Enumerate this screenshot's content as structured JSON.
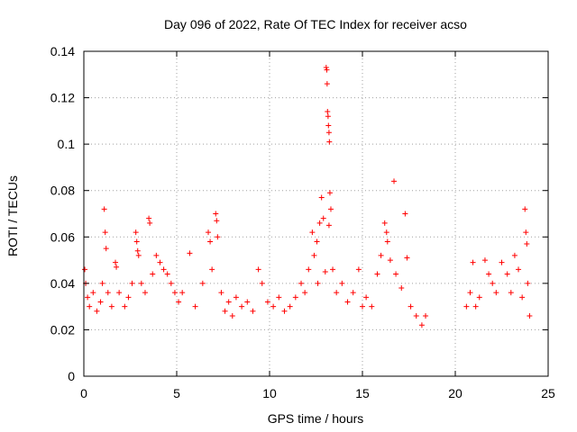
{
  "chart_data": {
    "type": "scatter",
    "title": "Day 096 of 2022, Rate Of TEC Index for receiver acso",
    "xlabel": "GPS time / hours",
    "ylabel": "ROTI / TECUs",
    "xlim": [
      0,
      25
    ],
    "ylim": [
      0,
      0.14
    ],
    "xticks": [
      0,
      5,
      10,
      15,
      20,
      25
    ],
    "yticks": [
      0,
      0.02,
      0.04,
      0.06,
      0.08,
      0.1,
      0.12,
      0.14
    ],
    "xtick_labels": [
      "0",
      "5",
      "10",
      "15",
      "20",
      "25"
    ],
    "ytick_labels": [
      "0",
      "0.02",
      "0.04",
      "0.06",
      "0.08",
      "0.1",
      "0.12",
      "0.14"
    ],
    "grid": true,
    "marker": "+",
    "marker_color": "#ff0000",
    "gaps": [
      [
        18.5,
        20.5
      ]
    ],
    "series": [
      {
        "points": [
          [
            0.05,
            0.046
          ],
          [
            0.1,
            0.04
          ],
          [
            0.2,
            0.034
          ],
          [
            0.3,
            0.03
          ],
          [
            0.5,
            0.036
          ],
          [
            0.7,
            0.028
          ],
          [
            0.9,
            0.032
          ],
          [
            1.1,
            0.072
          ],
          [
            1.15,
            0.062
          ],
          [
            1.2,
            0.055
          ],
          [
            1.0,
            0.04
          ],
          [
            1.3,
            0.036
          ],
          [
            1.5,
            0.03
          ],
          [
            1.7,
            0.049
          ],
          [
            1.75,
            0.047
          ],
          [
            1.9,
            0.036
          ],
          [
            2.2,
            0.03
          ],
          [
            2.4,
            0.034
          ],
          [
            2.6,
            0.04
          ],
          [
            2.8,
            0.062
          ],
          [
            2.85,
            0.058
          ],
          [
            2.9,
            0.054
          ],
          [
            2.95,
            0.052
          ],
          [
            3.1,
            0.04
          ],
          [
            3.3,
            0.036
          ],
          [
            3.5,
            0.068
          ],
          [
            3.55,
            0.066
          ],
          [
            3.7,
            0.044
          ],
          [
            3.9,
            0.052
          ],
          [
            4.1,
            0.049
          ],
          [
            4.3,
            0.046
          ],
          [
            4.5,
            0.044
          ],
          [
            4.7,
            0.04
          ],
          [
            4.9,
            0.036
          ],
          [
            5.1,
            0.032
          ],
          [
            5.3,
            0.036
          ],
          [
            5.7,
            0.053
          ],
          [
            6.0,
            0.03
          ],
          [
            6.4,
            0.04
          ],
          [
            6.7,
            0.062
          ],
          [
            6.8,
            0.058
          ],
          [
            6.9,
            0.046
          ],
          [
            7.1,
            0.07
          ],
          [
            7.15,
            0.067
          ],
          [
            7.2,
            0.06
          ],
          [
            7.4,
            0.036
          ],
          [
            7.6,
            0.028
          ],
          [
            7.8,
            0.032
          ],
          [
            8.0,
            0.026
          ],
          [
            8.2,
            0.034
          ],
          [
            8.5,
            0.03
          ],
          [
            8.8,
            0.032
          ],
          [
            9.1,
            0.028
          ],
          [
            9.4,
            0.046
          ],
          [
            9.6,
            0.04
          ],
          [
            9.9,
            0.032
          ],
          [
            10.2,
            0.03
          ],
          [
            10.5,
            0.034
          ],
          [
            10.8,
            0.028
          ],
          [
            11.1,
            0.03
          ],
          [
            11.4,
            0.034
          ],
          [
            11.7,
            0.04
          ],
          [
            11.9,
            0.036
          ],
          [
            12.1,
            0.046
          ],
          [
            12.3,
            0.062
          ],
          [
            12.4,
            0.052
          ],
          [
            12.55,
            0.058
          ],
          [
            12.6,
            0.04
          ],
          [
            12.7,
            0.066
          ],
          [
            12.8,
            0.077
          ],
          [
            12.9,
            0.068
          ],
          [
            13.0,
            0.045
          ],
          [
            13.05,
            0.133
          ],
          [
            13.08,
            0.132
          ],
          [
            13.1,
            0.126
          ],
          [
            13.12,
            0.114
          ],
          [
            13.15,
            0.112
          ],
          [
            13.17,
            0.108
          ],
          [
            13.2,
            0.105
          ],
          [
            13.22,
            0.101
          ],
          [
            13.25,
            0.079
          ],
          [
            13.3,
            0.072
          ],
          [
            13.2,
            0.065
          ],
          [
            13.4,
            0.046
          ],
          [
            13.6,
            0.036
          ],
          [
            13.9,
            0.04
          ],
          [
            14.2,
            0.032
          ],
          [
            14.5,
            0.036
          ],
          [
            14.8,
            0.046
          ],
          [
            15.0,
            0.03
          ],
          [
            15.2,
            0.034
          ],
          [
            15.5,
            0.03
          ],
          [
            15.8,
            0.044
          ],
          [
            16.0,
            0.052
          ],
          [
            16.2,
            0.066
          ],
          [
            16.3,
            0.062
          ],
          [
            16.35,
            0.058
          ],
          [
            16.5,
            0.05
          ],
          [
            16.7,
            0.084
          ],
          [
            16.8,
            0.044
          ],
          [
            17.1,
            0.038
          ],
          [
            17.3,
            0.07
          ],
          [
            17.4,
            0.051
          ],
          [
            17.6,
            0.03
          ],
          [
            17.9,
            0.026
          ],
          [
            18.2,
            0.022
          ],
          [
            18.4,
            0.026
          ],
          [
            20.6,
            0.03
          ],
          [
            20.8,
            0.036
          ],
          [
            20.95,
            0.049
          ],
          [
            21.1,
            0.03
          ],
          [
            21.3,
            0.034
          ],
          [
            21.6,
            0.05
          ],
          [
            21.8,
            0.044
          ],
          [
            22.0,
            0.04
          ],
          [
            22.2,
            0.036
          ],
          [
            22.5,
            0.049
          ],
          [
            22.8,
            0.044
          ],
          [
            23.0,
            0.036
          ],
          [
            23.2,
            0.052
          ],
          [
            23.4,
            0.046
          ],
          [
            23.6,
            0.034
          ],
          [
            23.75,
            0.072
          ],
          [
            23.8,
            0.062
          ],
          [
            23.85,
            0.057
          ],
          [
            23.9,
            0.04
          ],
          [
            24.0,
            0.026
          ]
        ]
      }
    ]
  }
}
